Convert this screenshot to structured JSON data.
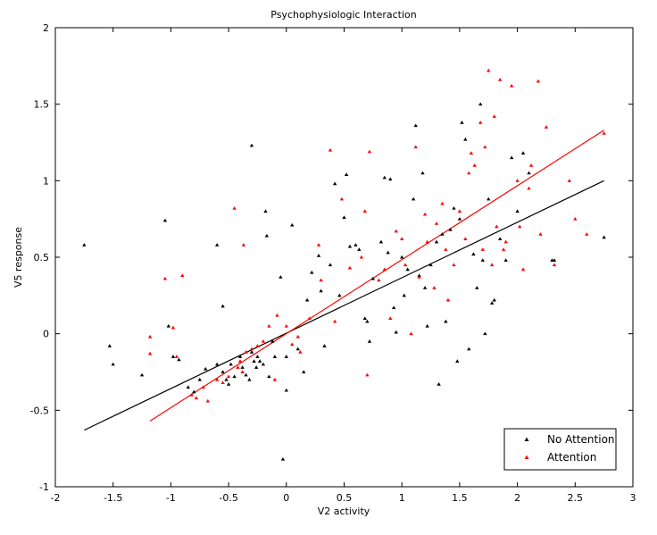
{
  "chart_data": {
    "type": "scatter",
    "title": "Psychophysiologic Interaction",
    "xlabel": "V2 activity",
    "ylabel": "V5 response",
    "xlim": [
      -2,
      3
    ],
    "ylim": [
      -1,
      2
    ],
    "xticks": [
      -2,
      -1.5,
      -1,
      -0.5,
      0,
      0.5,
      1,
      1.5,
      2,
      2.5,
      3
    ],
    "yticks": [
      -1,
      -0.5,
      0,
      0.5,
      1,
      1.5,
      2
    ],
    "xtick_labels": [
      "-2",
      "-1.5",
      "-1",
      "-0.5",
      "0",
      "0.5",
      "1",
      "1.5",
      "2",
      "2.5",
      "3"
    ],
    "ytick_labels": [
      "-1",
      "-0.5",
      "0",
      "0.5",
      "1",
      "1.5",
      "2"
    ],
    "grid": false,
    "legend_position": "bottom-right",
    "series": [
      {
        "name": "No Attention",
        "color": "#000000",
        "points": [
          [
            -1.75,
            0.58
          ],
          [
            -1.53,
            -0.08
          ],
          [
            -1.5,
            -0.2
          ],
          [
            -1.25,
            -0.27
          ],
          [
            -1.05,
            0.74
          ],
          [
            -1.02,
            0.05
          ],
          [
            -0.98,
            -0.15
          ],
          [
            -0.93,
            -0.17
          ],
          [
            -0.85,
            -0.35
          ],
          [
            -0.8,
            -0.38
          ],
          [
            -0.75,
            -0.3
          ],
          [
            -0.7,
            -0.23
          ],
          [
            -0.6,
            0.58
          ],
          [
            -0.6,
            -0.2
          ],
          [
            -0.55,
            0.18
          ],
          [
            -0.55,
            -0.25
          ],
          [
            -0.52,
            -0.3
          ],
          [
            -0.5,
            -0.33
          ],
          [
            -0.48,
            -0.2
          ],
          [
            -0.45,
            -0.28
          ],
          [
            -0.4,
            -0.15
          ],
          [
            -0.38,
            -0.22
          ],
          [
            -0.35,
            -0.27
          ],
          [
            -0.32,
            -0.3
          ],
          [
            -0.3,
            -0.12
          ],
          [
            -0.3,
            1.23
          ],
          [
            -0.28,
            -0.18
          ],
          [
            -0.26,
            -0.22
          ],
          [
            -0.25,
            -0.15
          ],
          [
            -0.23,
            -0.18
          ],
          [
            -0.2,
            -0.2
          ],
          [
            -0.18,
            0.8
          ],
          [
            -0.17,
            0.64
          ],
          [
            -0.15,
            -0.28
          ],
          [
            -0.12,
            -0.05
          ],
          [
            -0.1,
            -0.15
          ],
          [
            -0.05,
            0.37
          ],
          [
            -0.03,
            -0.82
          ],
          [
            0.0,
            -0.37
          ],
          [
            0.0,
            -0.15
          ],
          [
            0.05,
            0.71
          ],
          [
            0.1,
            -0.1
          ],
          [
            0.15,
            -0.25
          ],
          [
            0.18,
            0.22
          ],
          [
            0.22,
            0.4
          ],
          [
            0.28,
            0.51
          ],
          [
            0.3,
            0.28
          ],
          [
            0.33,
            -0.08
          ],
          [
            0.38,
            0.45
          ],
          [
            0.42,
            0.98
          ],
          [
            0.46,
            0.25
          ],
          [
            0.5,
            0.76
          ],
          [
            0.52,
            1.04
          ],
          [
            0.55,
            0.57
          ],
          [
            0.6,
            0.58
          ],
          [
            0.63,
            0.55
          ],
          [
            0.68,
            0.1
          ],
          [
            0.7,
            0.08
          ],
          [
            0.72,
            -0.05
          ],
          [
            0.75,
            0.36
          ],
          [
            0.82,
            0.6
          ],
          [
            0.85,
            1.02
          ],
          [
            0.88,
            0.53
          ],
          [
            0.9,
            1.01
          ],
          [
            0.93,
            0.17
          ],
          [
            0.95,
            0.01
          ],
          [
            1.0,
            0.5
          ],
          [
            1.02,
            0.25
          ],
          [
            1.05,
            0.42
          ],
          [
            1.1,
            0.88
          ],
          [
            1.12,
            1.36
          ],
          [
            1.15,
            0.38
          ],
          [
            1.18,
            1.05
          ],
          [
            1.2,
            0.3
          ],
          [
            1.22,
            0.05
          ],
          [
            1.25,
            0.45
          ],
          [
            1.3,
            0.6
          ],
          [
            1.32,
            -0.33
          ],
          [
            1.35,
            0.65
          ],
          [
            1.38,
            0.08
          ],
          [
            1.42,
            0.68
          ],
          [
            1.45,
            0.82
          ],
          [
            1.48,
            -0.18
          ],
          [
            1.5,
            0.75
          ],
          [
            1.52,
            1.38
          ],
          [
            1.55,
            1.27
          ],
          [
            1.58,
            -0.1
          ],
          [
            1.62,
            0.52
          ],
          [
            1.65,
            0.3
          ],
          [
            1.68,
            1.5
          ],
          [
            1.7,
            0.48
          ],
          [
            1.72,
            0.0
          ],
          [
            1.75,
            0.88
          ],
          [
            1.78,
            0.2
          ],
          [
            1.8,
            0.22
          ],
          [
            1.85,
            0.62
          ],
          [
            1.9,
            0.48
          ],
          [
            1.95,
            1.15
          ],
          [
            2.0,
            0.8
          ],
          [
            2.05,
            1.18
          ],
          [
            2.1,
            1.05
          ],
          [
            2.3,
            0.48
          ],
          [
            2.32,
            0.48
          ],
          [
            2.75,
            0.63
          ]
        ],
        "fit": [
          [
            -1.75,
            -0.63
          ],
          [
            2.75,
            1.0
          ]
        ]
      },
      {
        "name": "Attention",
        "color": "#ff0000",
        "points": [
          [
            -1.18,
            -0.02
          ],
          [
            -1.18,
            -0.13
          ],
          [
            -1.05,
            0.36
          ],
          [
            -0.98,
            0.04
          ],
          [
            -0.95,
            -0.15
          ],
          [
            -0.9,
            0.38
          ],
          [
            -0.82,
            -0.4
          ],
          [
            -0.78,
            -0.42
          ],
          [
            -0.72,
            -0.35
          ],
          [
            -0.68,
            -0.44
          ],
          [
            -0.6,
            -0.3
          ],
          [
            -0.55,
            -0.32
          ],
          [
            -0.5,
            -0.28
          ],
          [
            -0.45,
            0.82
          ],
          [
            -0.42,
            -0.22
          ],
          [
            -0.4,
            -0.18
          ],
          [
            -0.38,
            -0.25
          ],
          [
            -0.37,
            0.58
          ],
          [
            -0.35,
            -0.12
          ],
          [
            -0.3,
            -0.1
          ],
          [
            -0.25,
            -0.08
          ],
          [
            -0.2,
            -0.05
          ],
          [
            -0.15,
            0.05
          ],
          [
            -0.1,
            -0.3
          ],
          [
            -0.08,
            0.12
          ],
          [
            0.0,
            0.05
          ],
          [
            0.05,
            -0.07
          ],
          [
            0.1,
            -0.02
          ],
          [
            0.12,
            -0.12
          ],
          [
            0.2,
            0.1
          ],
          [
            0.28,
            0.58
          ],
          [
            0.3,
            0.35
          ],
          [
            0.38,
            1.2
          ],
          [
            0.42,
            0.08
          ],
          [
            0.48,
            0.88
          ],
          [
            0.55,
            0.43
          ],
          [
            0.65,
            0.5
          ],
          [
            0.68,
            0.8
          ],
          [
            0.7,
            -0.27
          ],
          [
            0.72,
            1.19
          ],
          [
            0.8,
            0.35
          ],
          [
            0.85,
            0.42
          ],
          [
            0.9,
            0.1
          ],
          [
            0.95,
            0.67
          ],
          [
            1.0,
            0.62
          ],
          [
            1.03,
            0.45
          ],
          [
            1.08,
            0.0
          ],
          [
            1.12,
            1.22
          ],
          [
            1.15,
            0.37
          ],
          [
            1.2,
            0.78
          ],
          [
            1.22,
            0.6
          ],
          [
            1.28,
            0.3
          ],
          [
            1.3,
            0.72
          ],
          [
            1.35,
            0.85
          ],
          [
            1.38,
            0.55
          ],
          [
            1.4,
            0.22
          ],
          [
            1.45,
            0.45
          ],
          [
            1.5,
            0.8
          ],
          [
            1.55,
            0.62
          ],
          [
            1.58,
            1.05
          ],
          [
            1.6,
            1.18
          ],
          [
            1.63,
            1.1
          ],
          [
            1.68,
            1.38
          ],
          [
            1.7,
            0.55
          ],
          [
            1.72,
            1.22
          ],
          [
            1.75,
            1.72
          ],
          [
            1.78,
            0.45
          ],
          [
            1.8,
            1.42
          ],
          [
            1.82,
            0.7
          ],
          [
            1.85,
            1.66
          ],
          [
            1.88,
            0.55
          ],
          [
            1.9,
            0.6
          ],
          [
            1.95,
            1.62
          ],
          [
            2.0,
            1.0
          ],
          [
            2.02,
            0.7
          ],
          [
            2.05,
            0.42
          ],
          [
            2.1,
            0.95
          ],
          [
            2.12,
            1.1
          ],
          [
            2.18,
            1.65
          ],
          [
            2.2,
            0.65
          ],
          [
            2.25,
            1.35
          ],
          [
            2.32,
            0.45
          ],
          [
            2.45,
            1.0
          ],
          [
            2.5,
            0.75
          ],
          [
            2.6,
            0.65
          ],
          [
            2.75,
            1.31
          ]
        ],
        "fit": [
          [
            -1.18,
            -0.57
          ],
          [
            2.75,
            1.33
          ]
        ]
      }
    ]
  }
}
